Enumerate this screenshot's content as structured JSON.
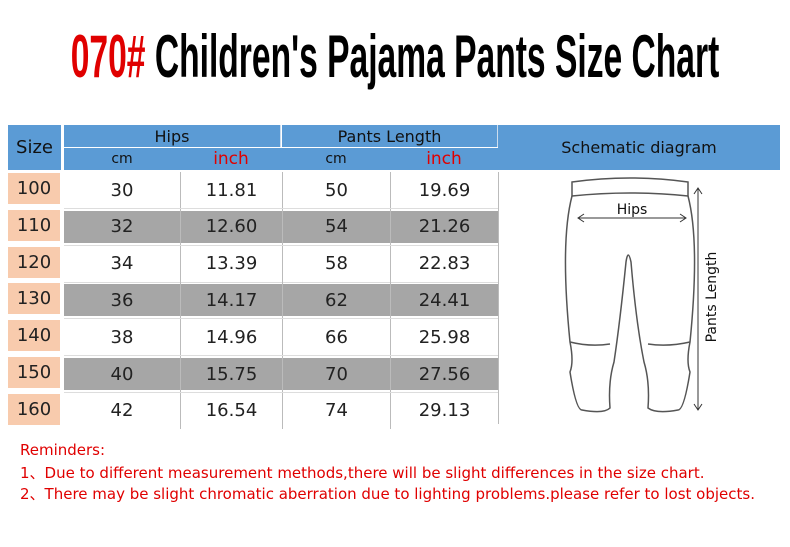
{
  "title": {
    "code": "070#",
    "text": "Children's Pajama Pants Size Chart"
  },
  "table": {
    "header": {
      "size": "Size",
      "hips": "Hips",
      "pants_length": "Pants Length",
      "schematic": "Schematic diagram",
      "units": [
        "cm",
        "inch",
        "cm",
        "inch"
      ]
    },
    "rows": [
      [
        "100",
        "30",
        "11.81",
        "50",
        "19.69"
      ],
      [
        "110",
        "32",
        "12.60",
        "54",
        "21.26"
      ],
      [
        "120",
        "34",
        "13.39",
        "58",
        "22.83"
      ],
      [
        "130",
        "36",
        "14.17",
        "62",
        "24.41"
      ],
      [
        "140",
        "38",
        "14.96",
        "66",
        "25.98"
      ],
      [
        "150",
        "40",
        "15.75",
        "70",
        "27.56"
      ],
      [
        "160",
        "42",
        "16.54",
        "74",
        "29.13"
      ]
    ]
  },
  "diagram": {
    "hips": "Hips",
    "length": "Pants Length"
  },
  "reminders": {
    "title": "Reminders:",
    "items": [
      "1、Due to different measurement methods,there will be slight differences in the size chart.",
      "2、There may be slight chromatic aberration due to lighting problems.please refer to lost objects."
    ]
  }
}
